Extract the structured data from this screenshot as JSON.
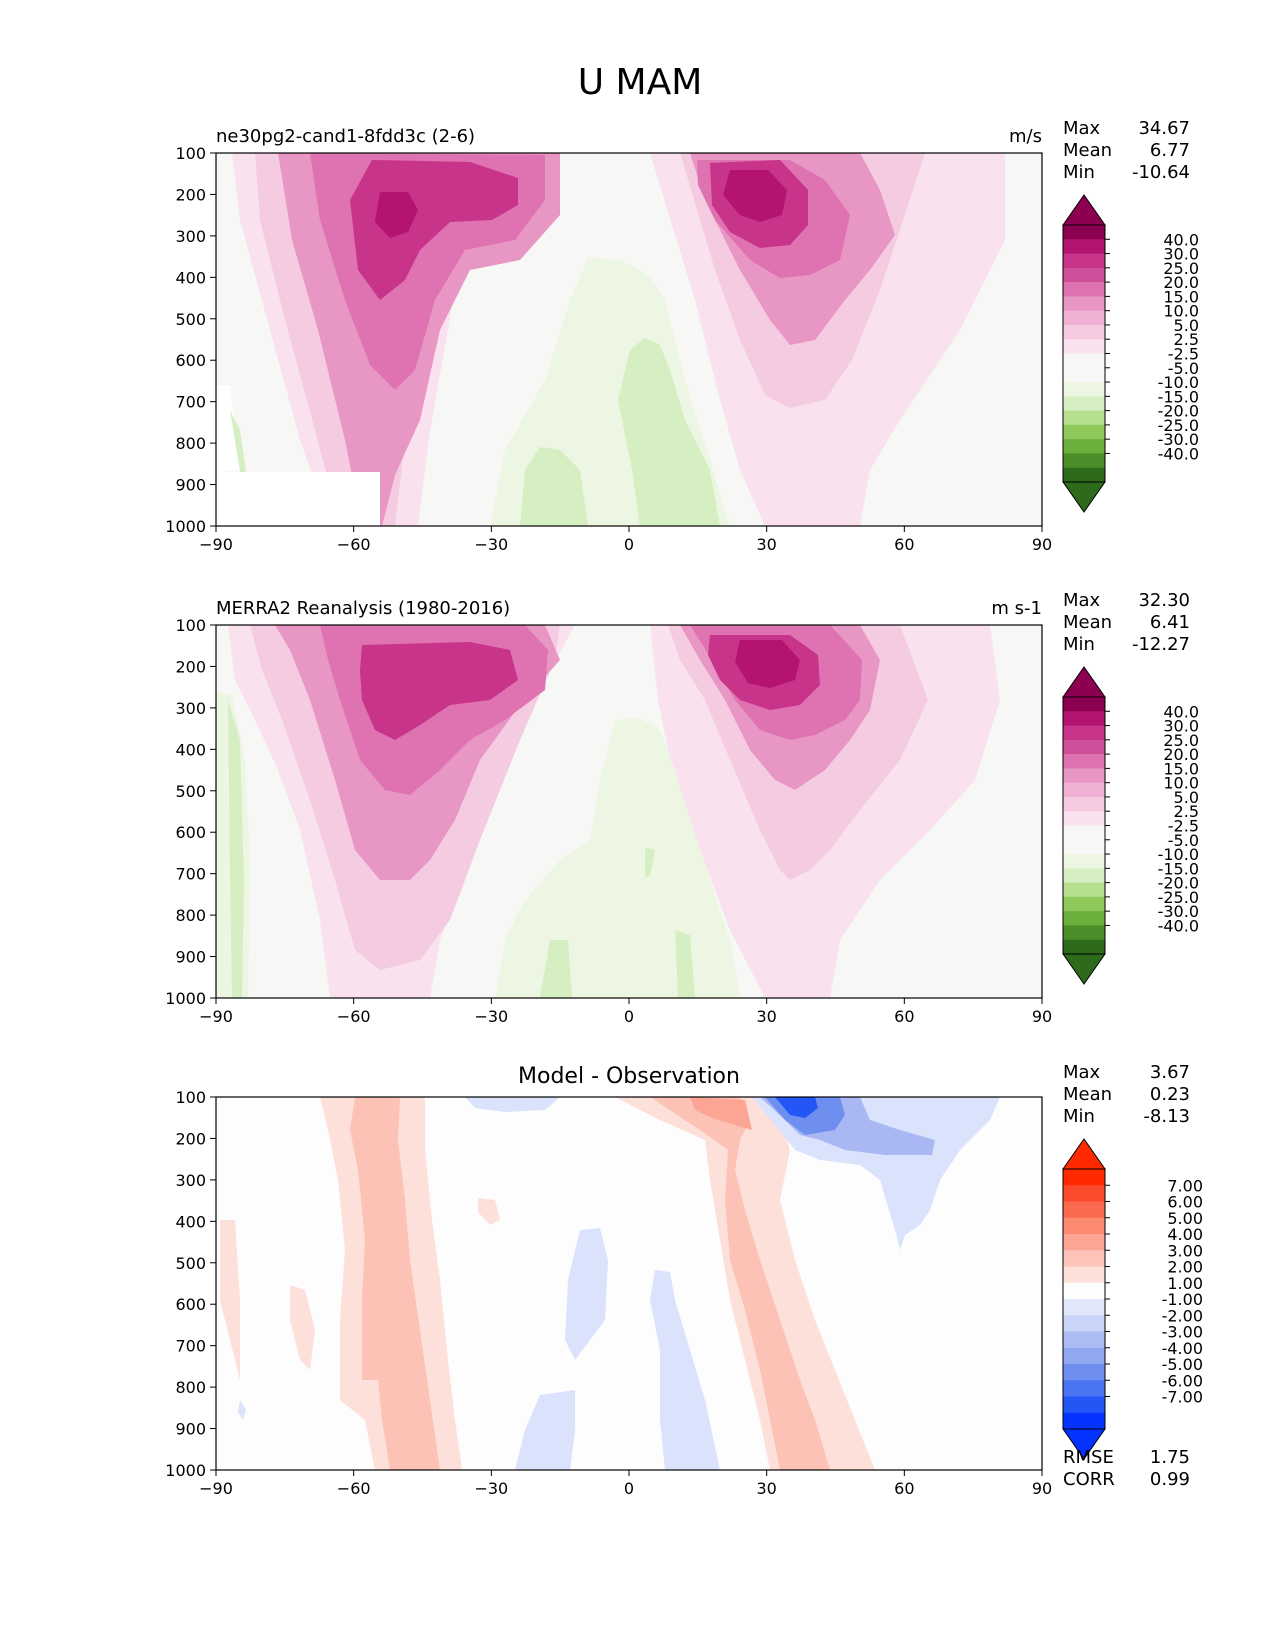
{
  "figure_title": "U MAM",
  "colors": {
    "pink_scale": [
      "#f7f7f6",
      "#f9e1ee",
      "#f5cbe2",
      "#efb2d4",
      "#e897c4",
      "#df72b0",
      "#d04f9b",
      "#c73489",
      "#b41470",
      "#8c0052"
    ],
    "green_scale": [
      "#f7f7f6",
      "#edf6e3",
      "#d6efc2",
      "#b5de8e",
      "#8fc95c",
      "#6aae3c",
      "#4a8e2a",
      "#2d6a1c"
    ],
    "diff_colorbar": [
      "#0433ff",
      "#2455f5",
      "#4a74f2",
      "#6f8ff0",
      "#90a7f1",
      "#adbdf3",
      "#cad4f8",
      "#e2e8fb",
      "#fdfdfd",
      "#fde0da",
      "#fcc4b8",
      "#fca594",
      "#fb8a70",
      "#fb6a4e",
      "#fb4a2e",
      "#ff2a00"
    ],
    "diff_pos": [
      "#fde0da",
      "#fbc2b5"
    ],
    "diff_neg": [
      "#dbe2fb",
      "#a9b8f3"
    ]
  },
  "chart_data": [
    {
      "type": "contourf",
      "title": "ne30pg2-cand1-8fdd3c (2-6)",
      "units": "m/s",
      "stats": [
        {
          "label": "Max",
          "value": "34.67"
        },
        {
          "label": "Mean",
          "value": "6.77"
        },
        {
          "label": "Min",
          "value": "-10.64"
        }
      ],
      "x_ticks": [
        "−90",
        "−60",
        "−30",
        "0",
        "30",
        "60",
        "90"
      ],
      "y_ticks": [
        "100",
        "200",
        "300",
        "400",
        "500",
        "600",
        "700",
        "800",
        "900",
        "1000"
      ],
      "xlim": [
        -90,
        90
      ],
      "ylim": [
        1000,
        100
      ],
      "colorbar": [
        "40.0",
        "30.0",
        "25.0",
        "20.0",
        "15.0",
        "10.0",
        "5.0",
        "2.5",
        "-2.5",
        "-5.0",
        "-10.0",
        "-15.0",
        "-20.0",
        "-25.0",
        "-30.0",
        "-40.0"
      ],
      "jets": [
        {
          "lat": -52,
          "p": 250,
          "max": 32
        },
        {
          "lat": 27,
          "p": 200,
          "max": 34.67
        }
      ],
      "easterlies": [
        {
          "lat": 7,
          "p": 750,
          "min": -10.64
        },
        {
          "lat": -13,
          "p": 900,
          "min": -10
        }
      ]
    },
    {
      "type": "contourf",
      "title": "MERRA2 Reanalysis (1980-2016)",
      "units": "m s-1",
      "stats": [
        {
          "label": "Max",
          "value": "32.30"
        },
        {
          "label": "Mean",
          "value": "6.41"
        },
        {
          "label": "Min",
          "value": "-12.27"
        }
      ],
      "x_ticks": [
        "−90",
        "−60",
        "−30",
        "0",
        "30",
        "60",
        "90"
      ],
      "y_ticks": [
        "100",
        "200",
        "300",
        "400",
        "500",
        "600",
        "700",
        "800",
        "900",
        "1000"
      ],
      "xlim": [
        -90,
        90
      ],
      "ylim": [
        1000,
        100
      ],
      "colorbar": [
        "40.0",
        "30.0",
        "25.0",
        "20.0",
        "15.0",
        "10.0",
        "5.0",
        "2.5",
        "-2.5",
        "-5.0",
        "-10.0",
        "-15.0",
        "-20.0",
        "-25.0",
        "-30.0",
        "-40.0"
      ],
      "jets": [
        {
          "lat": -50,
          "p": 250,
          "max": 28
        },
        {
          "lat": 27,
          "p": 200,
          "max": 32.3
        }
      ],
      "easterlies": [
        {
          "lat": -10,
          "p": 950,
          "min": -6
        },
        {
          "lat": 12,
          "p": 900,
          "min": -6
        }
      ]
    },
    {
      "type": "contourf",
      "title": "Model - Observation",
      "units": "",
      "stats": [
        {
          "label": "Max",
          "value": "3.67"
        },
        {
          "label": "Mean",
          "value": "0.23"
        },
        {
          "label": "Min",
          "value": "-8.13"
        }
      ],
      "x_ticks": [
        "−90",
        "−60",
        "−30",
        "0",
        "30",
        "60",
        "90"
      ],
      "y_ticks": [
        "100",
        "200",
        "300",
        "400",
        "500",
        "600",
        "700",
        "800",
        "900",
        "1000"
      ],
      "xlim": [
        -90,
        90
      ],
      "ylim": [
        1000,
        100
      ],
      "colorbar": [
        "7.00",
        "6.00",
        "5.00",
        "4.00",
        "3.00",
        "2.00",
        "1.00",
        "-1.00",
        "-2.00",
        "-3.00",
        "-4.00",
        "-5.00",
        "-6.00",
        "-7.00"
      ],
      "metrics": [
        {
          "label": "RMSE",
          "value": "1.75"
        },
        {
          "label": "CORR",
          "value": "0.99"
        }
      ]
    }
  ]
}
